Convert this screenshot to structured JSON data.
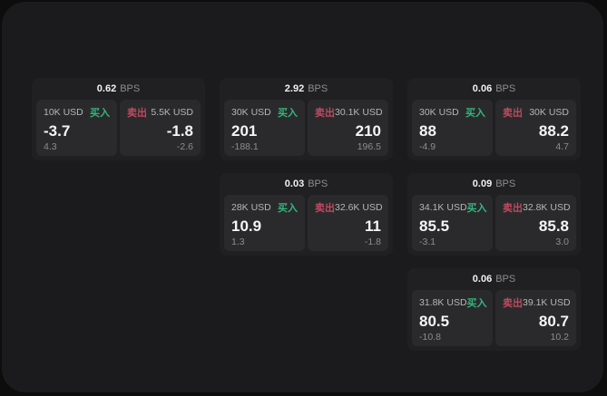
{
  "labels": {
    "bps_unit": "BPS",
    "buy": "买入",
    "sell": "卖出"
  },
  "colors": {
    "background": "#0d0d0d",
    "panel": "#1b1b1d",
    "card": "#202022",
    "side_box": "#2a2a2c",
    "buy_accent": "#35b57c",
    "sell_accent": "#bf4a5f",
    "primary_text": "#f5f5f5",
    "secondary_text": "#8d8d8d"
  },
  "cards": [
    {
      "bps": "0.62",
      "buy": {
        "amount": "10K USD",
        "price": "-3.7",
        "sub": "4.3"
      },
      "sell": {
        "amount": "5.5K USD",
        "price": "-1.8",
        "sub": "-2.6"
      }
    },
    {
      "bps": "2.92",
      "buy": {
        "amount": "30K USD",
        "price": "201",
        "sub": "-188.1"
      },
      "sell": {
        "amount": "30.1K USD",
        "price": "210",
        "sub": "196.5"
      }
    },
    {
      "bps": "0.06",
      "buy": {
        "amount": "30K USD",
        "price": "88",
        "sub": "-4.9"
      },
      "sell": {
        "amount": "30K USD",
        "price": "88.2",
        "sub": "4.7"
      }
    },
    {
      "bps": "0.03",
      "buy": {
        "amount": "28K USD",
        "price": "10.9",
        "sub": "1.3"
      },
      "sell": {
        "amount": "32.6K USD",
        "price": "11",
        "sub": "-1.8"
      }
    },
    {
      "bps": "0.09",
      "buy": {
        "amount": "34.1K USD",
        "price": "85.5",
        "sub": "-3.1"
      },
      "sell": {
        "amount": "32.8K USD",
        "price": "85.8",
        "sub": "3.0"
      }
    },
    {
      "bps": "0.06",
      "buy": {
        "amount": "31.8K USD",
        "price": "80.5",
        "sub": "-10.8"
      },
      "sell": {
        "amount": "39.1K USD",
        "price": "80.7",
        "sub": "10.2"
      }
    }
  ]
}
